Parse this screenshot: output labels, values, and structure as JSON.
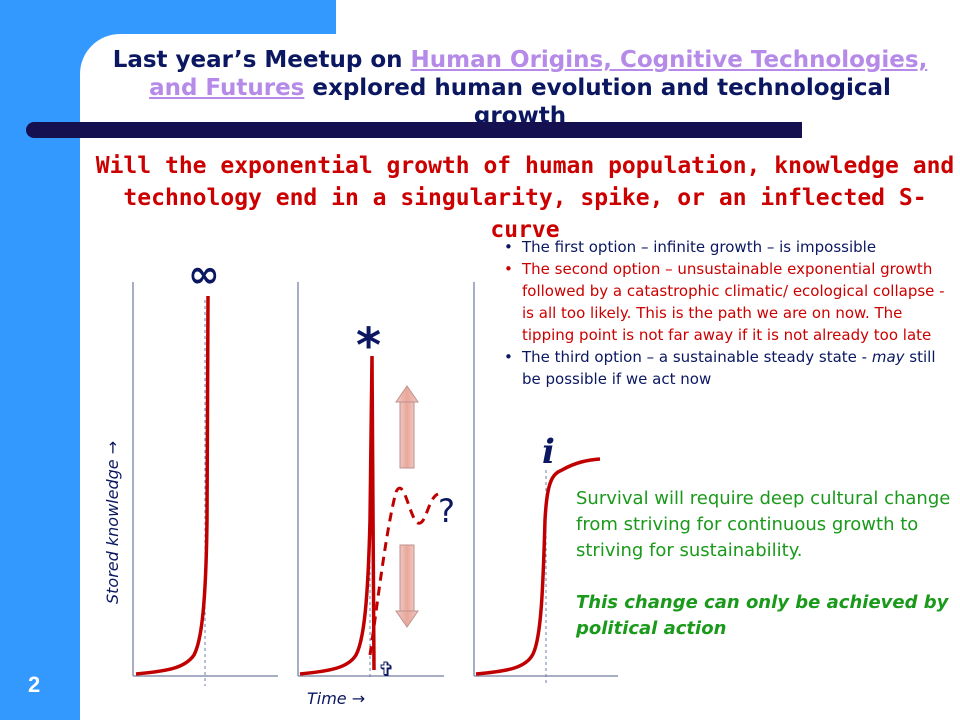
{
  "slide": {
    "page_number": "2",
    "header_prefix": "Last year’s Meetup on ",
    "header_link": "Human Origins, Cognitive Technologies, and Futures",
    "header_suffix": " explored human evolution and technological growth",
    "question": "Will the exponential growth of human population, knowledge and technology end in a singularity, spike, or an inflected S-curve",
    "bullets": [
      {
        "text": "The first option – infinite growth – is impossible",
        "color": "#0b1760"
      },
      {
        "text": "The second option – unsustainable exponential growth followed by a catastrophic climatic/ ecological collapse - is all too likely. This is the path we are on now. The tipping point is not far away if it is not already too late",
        "color": "#cc0000"
      },
      {
        "text_prefix": "The third option – a sustainable steady state - ",
        "emphasis": "may",
        "text_suffix": " still be possible if we act now",
        "color": "#0b1760"
      }
    ],
    "survival_text": "Survival will require deep cultural change from striving for continuous growth to striving for sustainability.",
    "political_text": "This change can only be achieved by political action"
  },
  "graphs": {
    "y_axis_label": "Stored knowledge →",
    "x_axis_label": "Time →",
    "symbols": {
      "singularity": "∞",
      "spike": "*",
      "uncertain": "?",
      "collapse": "✞",
      "inflection": "i"
    }
  },
  "colors": {
    "accent_blue": "#3399ff",
    "navy": "#0b1760",
    "curve_red": "#c00000",
    "green": "#1a9a1a",
    "link_purple": "#b58ae8"
  }
}
